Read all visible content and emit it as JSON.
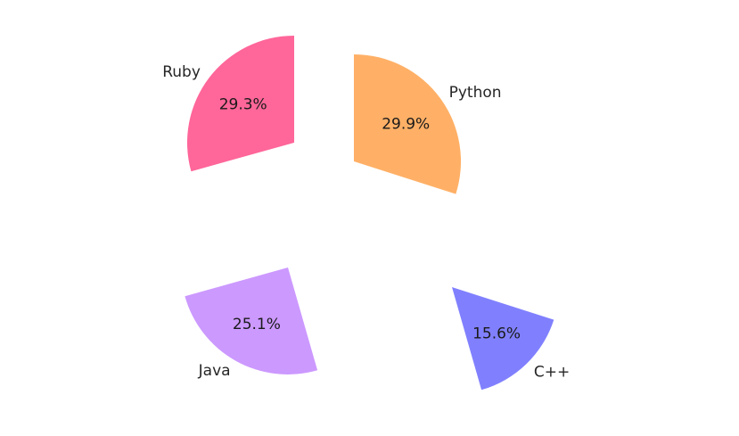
{
  "chart_data": {
    "type": "pie",
    "title": "",
    "categories": [
      "Ruby",
      "Java",
      "C++",
      "Python"
    ],
    "values": [
      29.3,
      25.1,
      15.6,
      29.9
    ],
    "percent_labels": [
      "29.3%",
      "25.1%",
      "15.6%",
      "29.9%"
    ],
    "colors": [
      "#ff6699",
      "#cc99ff",
      "#8080ff",
      "#ffb066"
    ],
    "start_angle": 90,
    "direction": "counterclockwise",
    "exploded": true,
    "legend": "none",
    "wedges": [
      {
        "label": "Ruby",
        "percent": "29.3%",
        "color": "#ff6699",
        "vertex": [
          330,
          160
        ]
      },
      {
        "label": "Java",
        "percent": "25.1%",
        "color": "#cc99ff",
        "vertex": [
          323,
          300
        ]
      },
      {
        "label": "C++",
        "percent": "15.6%",
        "color": "#8080ff",
        "vertex": [
          507,
          322
        ]
      },
      {
        "label": "Python",
        "percent": "29.9%",
        "color": "#ffb066",
        "vertex": [
          397,
          181
        ]
      }
    ]
  }
}
